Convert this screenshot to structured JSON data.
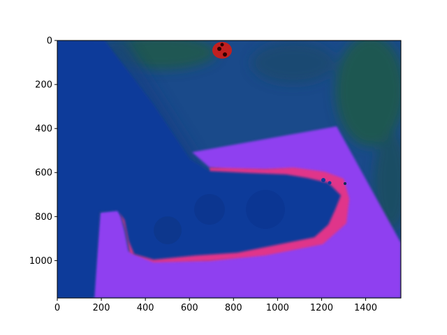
{
  "chart_data": {
    "type": "heatmap",
    "title": "",
    "xlabel": "",
    "ylabel": "",
    "xlim": [
      0,
      1560
    ],
    "ylim": [
      1170,
      0
    ],
    "x_ticks": [
      0,
      200,
      400,
      600,
      800,
      1000,
      1200,
      1400
    ],
    "y_ticks": [
      0,
      200,
      400,
      600,
      800,
      1000
    ],
    "x_tick_labels": [
      "0",
      "200",
      "400",
      "600",
      "800",
      "1000",
      "1200",
      "1400"
    ],
    "y_tick_labels": [
      "0",
      "200",
      "400",
      "600",
      "800",
      "1000"
    ],
    "grid": false,
    "colors": {
      "background_blue": "#1a4a8a",
      "dark_green": "#1f5a4a",
      "hand_blue": "#0a3a9a",
      "surface_purple": "#8f3ff0",
      "rim_magenta": "#e0358a",
      "red_spot": "#c02020"
    }
  }
}
